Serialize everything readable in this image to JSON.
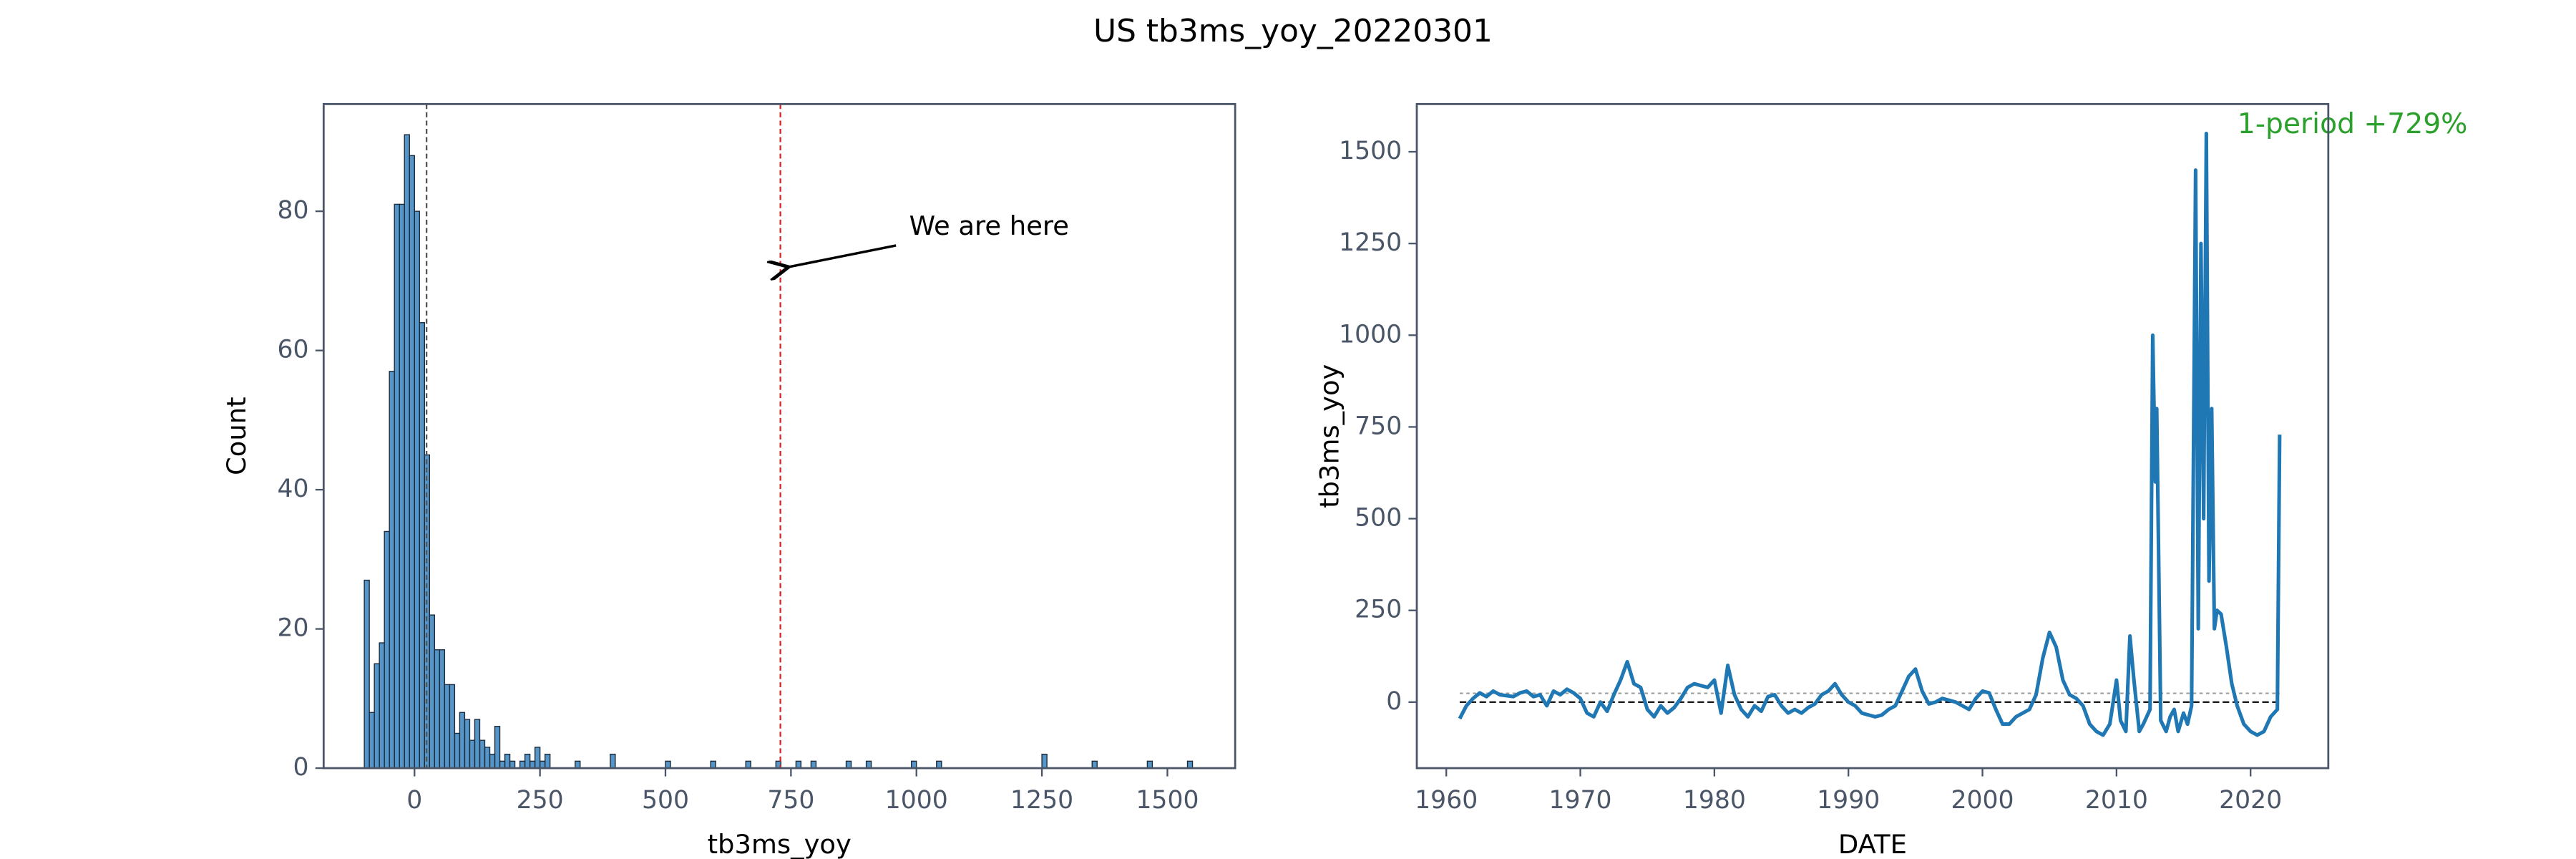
{
  "title": "US tb3ms_yoy_20220301",
  "chart_data": [
    {
      "type": "histogram",
      "xlabel": "tb3ms_yoy",
      "ylabel": "Count",
      "color": "#2b7bba",
      "bins": [
        -100,
        -90,
        -80,
        -70,
        -60,
        -50,
        -40,
        -30,
        -20,
        -10,
        0,
        10,
        20,
        30,
        40,
        50,
        60,
        70,
        80,
        90,
        100,
        110,
        120,
        130,
        140,
        150,
        160,
        170,
        180,
        190,
        200,
        210,
        220,
        230,
        240,
        250,
        260,
        270,
        280,
        290,
        300,
        310,
        320,
        330,
        340,
        350,
        360,
        370,
        380,
        390,
        400,
        410,
        420,
        430,
        440,
        450,
        460,
        470,
        480,
        490,
        500,
        510,
        520,
        530,
        540,
        550,
        560,
        570,
        580,
        590,
        600,
        610,
        620,
        630,
        640,
        650,
        660,
        670,
        680,
        690,
        700,
        710,
        720,
        730,
        740,
        750,
        760,
        770,
        780,
        790,
        800,
        810,
        820,
        830,
        840,
        850,
        860,
        870,
        880,
        890,
        900,
        910,
        920,
        930,
        940,
        950,
        960,
        970,
        980,
        990,
        1000,
        1010,
        1020,
        1030,
        1040,
        1050,
        1060,
        1070,
        1080,
        1090,
        1100,
        1110,
        1120,
        1130,
        1140,
        1150,
        1160,
        1170,
        1180,
        1190,
        1200,
        1210,
        1220,
        1230,
        1240,
        1250,
        1260,
        1270,
        1280,
        1290,
        1300,
        1310,
        1320,
        1330,
        1340,
        1350,
        1360,
        1370,
        1380,
        1390,
        1400,
        1410,
        1420,
        1430,
        1440,
        1450,
        1460,
        1470,
        1480,
        1490,
        1500,
        1510,
        1520,
        1530,
        1540,
        1550
      ],
      "counts": [
        27,
        8,
        15,
        18,
        34,
        57,
        81,
        81,
        91,
        88,
        80,
        64,
        45,
        22,
        17,
        17,
        12,
        12,
        5,
        8,
        7,
        4,
        7,
        4,
        3,
        2,
        6,
        1,
        2,
        1,
        0,
        1,
        2,
        1,
        3,
        1,
        2,
        0,
        0,
        0,
        0,
        0,
        1,
        0,
        0,
        0,
        0,
        0,
        0,
        2,
        0,
        0,
        0,
        0,
        0,
        0,
        0,
        0,
        0,
        0,
        1,
        0,
        0,
        0,
        0,
        0,
        0,
        0,
        0,
        1,
        0,
        0,
        0,
        0,
        0,
        0,
        1,
        0,
        0,
        0,
        0,
        0,
        1,
        0,
        0,
        0,
        1,
        0,
        0,
        1,
        0,
        0,
        0,
        0,
        0,
        0,
        1,
        0,
        0,
        0,
        1,
        0,
        0,
        0,
        0,
        0,
        0,
        0,
        0,
        1,
        0,
        0,
        0,
        0,
        1,
        0,
        0,
        0,
        0,
        0,
        0,
        0,
        0,
        0,
        0,
        0,
        0,
        0,
        0,
        0,
        0,
        0,
        0,
        0,
        0,
        2,
        0,
        0,
        0,
        0,
        0,
        0,
        0,
        0,
        0,
        1,
        0,
        0,
        0,
        0,
        0,
        0,
        0,
        0,
        0,
        0,
        1,
        0,
        0,
        0,
        0,
        0,
        0,
        0,
        1
      ],
      "xlim": [
        -181,
        1635
      ],
      "ylim": [
        0,
        95.4
      ],
      "xticks": [
        0,
        250,
        500,
        750,
        1000,
        1250,
        1500
      ],
      "yticks": [
        0,
        20,
        40,
        60,
        80
      ],
      "vlines": [
        {
          "value": 24,
          "color": "#555555"
        },
        {
          "value": 729,
          "color": "#d62728"
        }
      ],
      "annotation": {
        "text": "We are here",
        "xy": [
          729,
          72
        ]
      }
    },
    {
      "type": "line",
      "xlabel": "DATE",
      "ylabel": "tb3ms_yoy",
      "color": "#1f77b4",
      "x": [
        1961,
        1961.5,
        1962,
        1962.5,
        1963,
        1963.5,
        1964,
        1965,
        1965.5,
        1966,
        1966.5,
        1967,
        1967.5,
        1968,
        1968.5,
        1969,
        1969.5,
        1970,
        1970.5,
        1971,
        1971.5,
        1972,
        1972.5,
        1973,
        1973.5,
        1974,
        1974.5,
        1975,
        1975.5,
        1976,
        1976.5,
        1977,
        1977.5,
        1978,
        1978.5,
        1979,
        1979.5,
        1980,
        1980.5,
        1981,
        1981.5,
        1982,
        1982.5,
        1983,
        1983.5,
        1984,
        1984.5,
        1985,
        1985.5,
        1986,
        1986.5,
        1987,
        1987.5,
        1988,
        1988.5,
        1989,
        1989.5,
        1990,
        1990.5,
        1991,
        1991.5,
        1992,
        1992.5,
        1993,
        1993.5,
        1994,
        1994.5,
        1995,
        1995.5,
        1996,
        1996.5,
        1997,
        1997.5,
        1998,
        1998.5,
        1999,
        1999.5,
        2000,
        2000.5,
        2001,
        2001.5,
        2002,
        2002.5,
        2003,
        2003.5,
        2004,
        2004.5,
        2005,
        2005.5,
        2006,
        2006.5,
        2007,
        2007.5,
        2008,
        2008.5,
        2009,
        2009.5,
        2010,
        2010.3,
        2010.7,
        2011,
        2011.3,
        2011.7,
        2012,
        2012.5,
        2012.7,
        2012.9,
        2013,
        2013.3,
        2013.7,
        2014,
        2014.3,
        2014.6,
        2015,
        2015.3,
        2015.6,
        2015.9,
        2016.1,
        2016.3,
        2016.5,
        2016.7,
        2016.9,
        2017.1,
        2017.3,
        2017.5,
        2017.8,
        2018.2,
        2018.6,
        2019,
        2019.5,
        2020,
        2020.5,
        2021,
        2021.5,
        2022,
        2022.17
      ],
      "values": [
        -45,
        -10,
        10,
        25,
        15,
        30,
        20,
        15,
        25,
        30,
        15,
        20,
        -10,
        30,
        20,
        35,
        25,
        10,
        -30,
        -40,
        0,
        -25,
        20,
        60,
        110,
        50,
        40,
        -20,
        -40,
        -10,
        -30,
        -15,
        10,
        40,
        50,
        45,
        40,
        60,
        -30,
        100,
        20,
        -20,
        -40,
        -10,
        -25,
        15,
        20,
        -10,
        -30,
        -20,
        -30,
        -15,
        -5,
        20,
        30,
        50,
        20,
        0,
        -10,
        -30,
        -35,
        -40,
        -35,
        -20,
        -10,
        30,
        70,
        90,
        30,
        -5,
        0,
        10,
        5,
        0,
        -10,
        -20,
        10,
        30,
        25,
        -20,
        -60,
        -60,
        -40,
        -30,
        -20,
        20,
        120,
        190,
        150,
        60,
        20,
        10,
        -10,
        -60,
        -80,
        -90,
        -60,
        60,
        -50,
        -80,
        180,
        60,
        -80,
        -60,
        -20,
        1000,
        600,
        800,
        -50,
        -80,
        -40,
        -20,
        -80,
        -30,
        -60,
        -10,
        1450,
        200,
        1250,
        500,
        1550,
        330,
        800,
        200,
        250,
        240,
        150,
        50,
        -10,
        -60,
        -80,
        -90,
        -80,
        -40,
        -20,
        729
      ],
      "xlim": [
        1957.8,
        2025.8
      ],
      "ylim": [
        -180,
        1630
      ],
      "xticks": [
        1960,
        1970,
        1980,
        1990,
        2000,
        2010,
        2020
      ],
      "yticks": [
        0,
        250,
        500,
        750,
        1000,
        1250,
        1500
      ],
      "hlines": [
        {
          "value": 0,
          "color": "#000000"
        },
        {
          "value": 24,
          "color": "#999999"
        }
      ],
      "annotation": {
        "text": "1-period +729%",
        "color": "#2ca02c"
      }
    }
  ]
}
